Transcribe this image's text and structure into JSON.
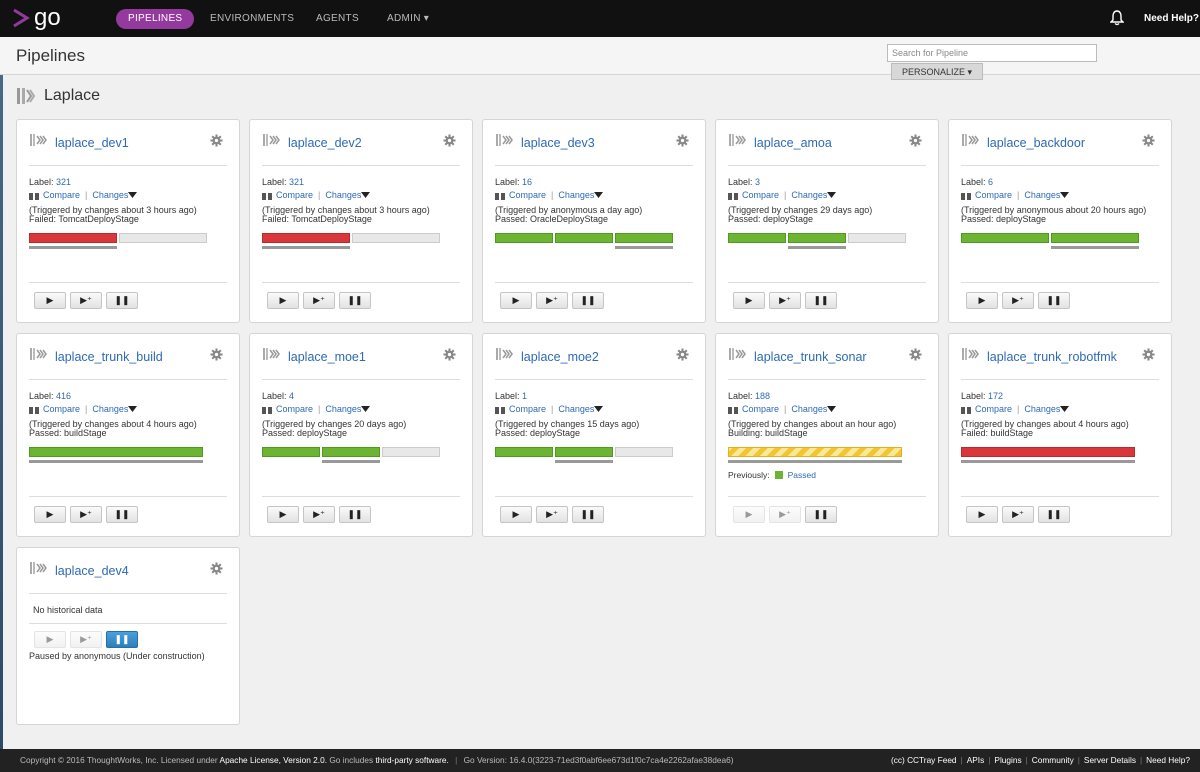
{
  "app": {
    "logo_text": "go",
    "accent_color": "#943a9e"
  },
  "nav": {
    "pipelines": "PIPELINES",
    "environments": "ENVIRONMENTS",
    "agents": "AGENTS",
    "admin": "ADMIN ▾",
    "help": "Need Help?"
  },
  "header": {
    "title": "Pipelines",
    "search_placeholder": "Search for Pipeline",
    "personalize": "PERSONALIZE ▾"
  },
  "group": {
    "name": "Laplace"
  },
  "common": {
    "label_prefix": "Label: ",
    "compare": "Compare",
    "changes": "Changes",
    "previously": "Previously:"
  },
  "pipelines": [
    {
      "name": "laplace_dev1",
      "label": "321",
      "triggered": "(Triggered by changes about 3 hours ago)",
      "status": "Failed: TomcatDeployStage",
      "stages": [
        "Failed",
        "Unknown"
      ]
    },
    {
      "name": "laplace_dev2",
      "label": "321",
      "triggered": "(Triggered by changes about 3 hours ago)",
      "status": "Failed: TomcatDeployStage",
      "stages": [
        "Failed",
        "Unknown"
      ]
    },
    {
      "name": "laplace_dev3",
      "label": "16",
      "triggered": "(Triggered by anonymous a day ago)",
      "status": "Passed: OracleDeployStage",
      "stages": [
        "Passed",
        "Passed",
        "Passed"
      ]
    },
    {
      "name": "laplace_amoa",
      "label": "3",
      "triggered": "(Triggered by changes 29 days ago)",
      "status": "Passed: deployStage",
      "stages": [
        "Passed",
        "Passed",
        "Unknown"
      ]
    },
    {
      "name": "laplace_backdoor",
      "label": "6",
      "triggered": "(Triggered by anonymous about 20 hours ago)",
      "status": "Passed: deployStage",
      "stages": [
        "Passed",
        "Passed"
      ]
    },
    {
      "name": "laplace_trunk_build",
      "label": "416",
      "triggered": "(Triggered by changes about 4 hours ago)",
      "status": "Passed: buildStage",
      "stages": [
        "Passed"
      ]
    },
    {
      "name": "laplace_moe1",
      "label": "4",
      "triggered": "(Triggered by changes 20 days ago)",
      "status": "Passed: deployStage",
      "stages": [
        "Passed",
        "Passed",
        "Unknown"
      ]
    },
    {
      "name": "laplace_moe2",
      "label": "1",
      "triggered": "(Triggered by changes 15 days ago)",
      "status": "Passed: deployStage",
      "stages": [
        "Passed",
        "Passed",
        "Unknown"
      ]
    },
    {
      "name": "laplace_trunk_sonar",
      "label": "188",
      "triggered": "(Triggered by changes about an hour ago)",
      "status": "Building: buildStage",
      "stages": [
        "Building"
      ],
      "previously": "Passed"
    },
    {
      "name": "laplace_trunk_robotfmk",
      "label": "172",
      "triggered": "(Triggered by changes about 4 hours ago)",
      "status": "Failed: buildStage",
      "stages": [
        "Failed"
      ]
    },
    {
      "name": "laplace_dev4",
      "no_history": "No historical data",
      "paused": "Paused by anonymous (Under construction)"
    }
  ],
  "footer": {
    "copyright": "Copyright © 2016 ThoughtWorks, Inc. Licensed under",
    "license": "Apache License, Version 2.0.",
    "includes": "Go includes",
    "third_party": "third-party software.",
    "version": "Go Version: 16.4.0(3223-71ed3f0abf6ee673d1f0c7ca4e2262afae38dea6)",
    "links": [
      "(cc) CCTray Feed",
      "APIs",
      "Plugins",
      "Community",
      "Server Details",
      "Need Help?"
    ]
  }
}
